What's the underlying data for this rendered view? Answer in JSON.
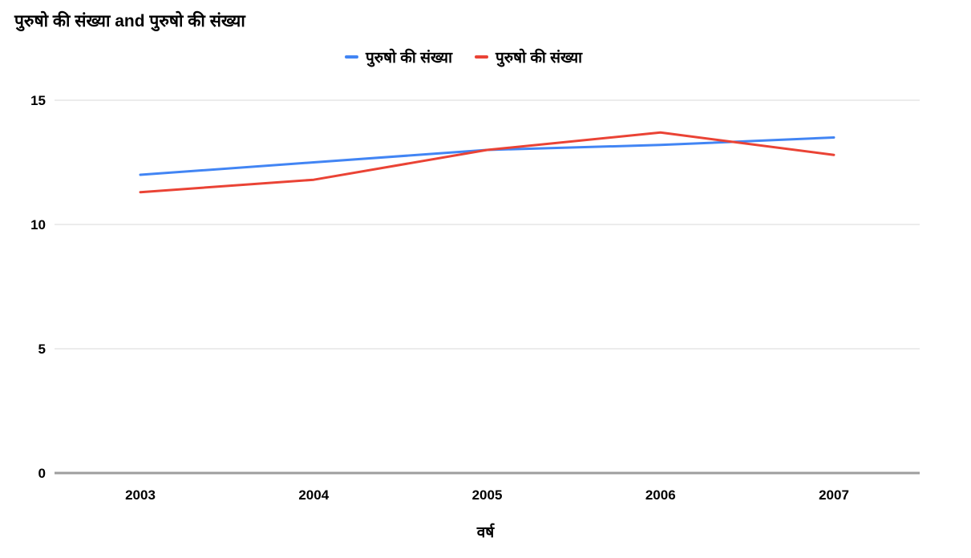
{
  "chart_data": {
    "type": "line",
    "title": "पुरुषो की संख्या and पुरुषो की संख्या",
    "xlabel": "वर्ष",
    "ylabel": "",
    "categories": [
      "2003",
      "2004",
      "2005",
      "2006",
      "2007"
    ],
    "series": [
      {
        "name": "पुरुषो की संख्या",
        "color": "#4285F4",
        "values": [
          12,
          12.5,
          13,
          13.2,
          13.5
        ]
      },
      {
        "name": "पुरुषो की संख्या",
        "color": "#EA4335",
        "values": [
          11.3,
          11.8,
          13,
          13.7,
          12.8
        ]
      }
    ],
    "yticks": [
      0,
      5,
      10,
      15
    ],
    "ylim": [
      0,
      15
    ],
    "grid": true,
    "legend_position": "top",
    "colors": {
      "gridline": "#ececec",
      "baseline": "#9e9e9e",
      "tick_text": "#000000"
    }
  }
}
